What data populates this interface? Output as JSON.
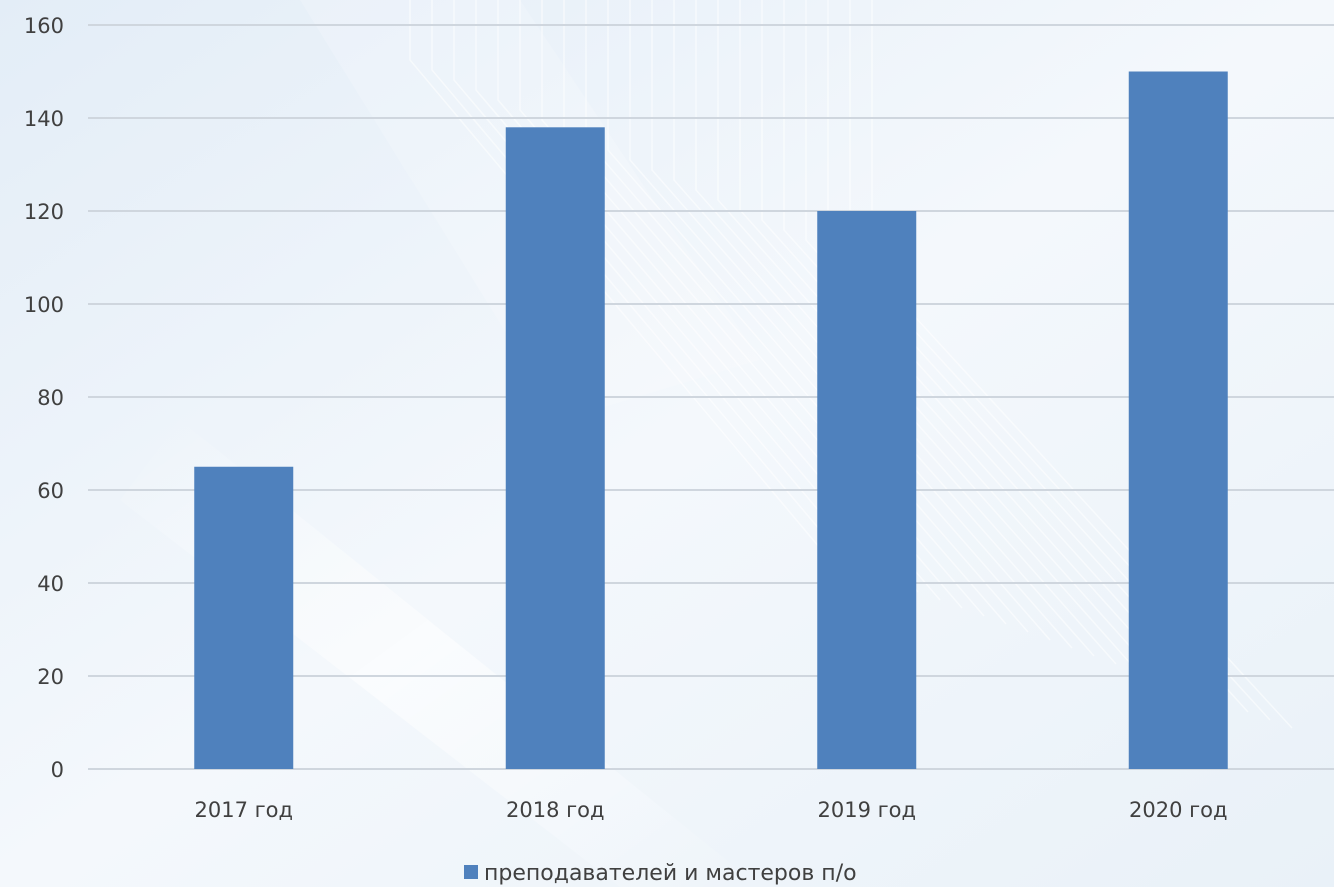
{
  "chart_data": {
    "type": "bar",
    "categories": [
      "2017 год",
      "2018 год",
      "2019 год",
      "2020 год"
    ],
    "series": [
      {
        "name": "преподавателей и мастеров п/о",
        "values": [
          65,
          138,
          120,
          150
        ],
        "color": "#4f81bd"
      }
    ],
    "ylim": [
      0,
      160
    ],
    "yticks": [
      0,
      20,
      40,
      60,
      80,
      100,
      120,
      140,
      160
    ],
    "grid": true,
    "legend_position": "bottom",
    "title": "",
    "xlabel": "",
    "ylabel": ""
  },
  "colors": {
    "gridline": "#cfd6de",
    "axis_text": "#404040"
  }
}
